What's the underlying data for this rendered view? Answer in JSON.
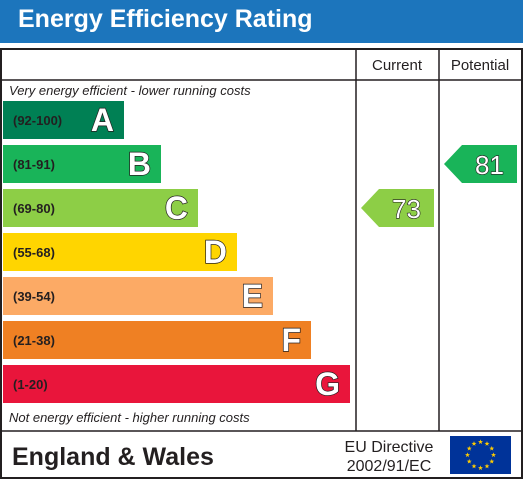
{
  "title": "Energy Efficiency Rating",
  "chart_data": {
    "type": "bar",
    "columns": {
      "current": "Current",
      "potential": "Potential"
    },
    "top_note": "Very energy efficient - lower running costs",
    "bottom_note": "Not energy efficient - higher running costs",
    "bands": [
      {
        "range": "(92-100)",
        "letter": "A",
        "color": "#008054"
      },
      {
        "range": "(81-91)",
        "letter": "B",
        "color": "#19b459"
      },
      {
        "range": "(69-80)",
        "letter": "C",
        "color": "#8dce46"
      },
      {
        "range": "(55-68)",
        "letter": "D",
        "color": "#ffd500"
      },
      {
        "range": "(39-54)",
        "letter": "E",
        "color": "#fcaa65"
      },
      {
        "range": "(21-38)",
        "letter": "F",
        "color": "#ef8023"
      },
      {
        "range": "(1-20)",
        "letter": "G",
        "color": "#e9153b"
      }
    ],
    "current": {
      "value": 73,
      "band": "C",
      "color": "#8dce46"
    },
    "potential": {
      "value": 81,
      "band": "B",
      "color": "#19b459"
    }
  },
  "footer": {
    "region": "England & Wales",
    "directive_line1": "EU Directive",
    "directive_line2": "2002/91/EC",
    "flag_colors": {
      "field": "#003399",
      "stars": "#ffcc00"
    }
  }
}
